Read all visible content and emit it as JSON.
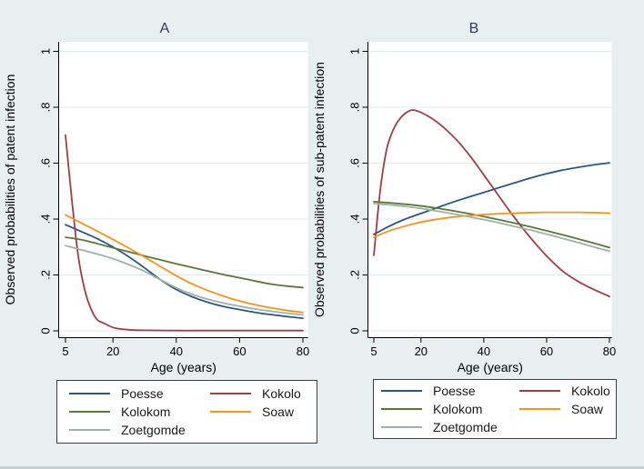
{
  "figure": {
    "background_color": "#e8eff1",
    "plot_background": "#ffffff",
    "grid_color": "#dfeaf2",
    "axis_color": "#000000",
    "title_color": "#2b3a64",
    "bottom_bar_color": "#c6d0d5"
  },
  "legend": {
    "entries": [
      {
        "id": "poesse",
        "label": "Poesse",
        "color": "#2a5784"
      },
      {
        "id": "kokolo",
        "label": "Kokolo",
        "color": "#a33d43"
      },
      {
        "id": "kolokom",
        "label": "Kolokom",
        "color": "#57793b"
      },
      {
        "id": "soaw",
        "label": "Soaw",
        "color": "#f6931d"
      },
      {
        "id": "zoetgomde",
        "label": "Zoetgomde",
        "color": "#9fb1a8"
      }
    ]
  },
  "chart_data": [
    {
      "type": "line",
      "title": "A",
      "xlabel": "Age (years)",
      "ylabel": "Observed probabilities of patent infection",
      "xlim": [
        3,
        81
      ],
      "ylim": [
        0,
        1
      ],
      "xticks": [
        5,
        20,
        40,
        60,
        80
      ],
      "xtick_labels": [
        "5",
        "20",
        "40",
        "60",
        "80"
      ],
      "yticks": [
        0,
        0.2,
        0.4,
        0.6,
        0.8,
        1
      ],
      "ytick_labels": [
        "0",
        ".2",
        ".4",
        ".6",
        ".8",
        "1"
      ],
      "grid": "horizontal",
      "legend_position": "below",
      "series": [
        {
          "name": "Poesse",
          "color": "#2a5784",
          "x": [
            5,
            10,
            15,
            20,
            25,
            30,
            35,
            40,
            45,
            50,
            55,
            60,
            65,
            70,
            75,
            80
          ],
          "y": [
            0.38,
            0.355,
            0.33,
            0.3,
            0.265,
            0.225,
            0.183,
            0.148,
            0.122,
            0.102,
            0.087,
            0.076,
            0.066,
            0.058,
            0.051,
            0.045
          ]
        },
        {
          "name": "Kokolo",
          "color": "#a33d43",
          "x": [
            5,
            7,
            9,
            11,
            13,
            15,
            17,
            20,
            23,
            26,
            30,
            40,
            50,
            60,
            70,
            80
          ],
          "y": [
            0.7,
            0.47,
            0.27,
            0.15,
            0.08,
            0.04,
            0.028,
            0.012,
            0.006,
            0.003,
            0.002,
            0.001,
            0.001,
            0.001,
            0.001,
            0.001
          ]
        },
        {
          "name": "Kolokom",
          "color": "#57793b",
          "x": [
            5,
            10,
            15,
            20,
            25,
            30,
            35,
            40,
            45,
            50,
            55,
            60,
            65,
            70,
            75,
            80
          ],
          "y": [
            0.335,
            0.326,
            0.312,
            0.297,
            0.283,
            0.268,
            0.254,
            0.24,
            0.227,
            0.214,
            0.201,
            0.19,
            0.178,
            0.167,
            0.16,
            0.155
          ]
        },
        {
          "name": "Soaw",
          "color": "#f6931d",
          "x": [
            5,
            10,
            15,
            20,
            25,
            30,
            35,
            40,
            45,
            50,
            55,
            60,
            65,
            70,
            75,
            80
          ],
          "y": [
            0.415,
            0.386,
            0.357,
            0.327,
            0.296,
            0.264,
            0.23,
            0.197,
            0.168,
            0.144,
            0.124,
            0.107,
            0.093,
            0.082,
            0.073,
            0.066
          ]
        },
        {
          "name": "Zoetgomde",
          "color": "#9fb1a8",
          "x": [
            5,
            10,
            15,
            20,
            25,
            30,
            35,
            40,
            45,
            50,
            55,
            60,
            65,
            70,
            75,
            80
          ],
          "y": [
            0.305,
            0.29,
            0.275,
            0.258,
            0.237,
            0.213,
            0.183,
            0.154,
            0.131,
            0.113,
            0.099,
            0.088,
            0.078,
            0.07,
            0.063,
            0.057
          ]
        }
      ]
    },
    {
      "type": "line",
      "title": "B",
      "xlabel": "Age (years)",
      "ylabel": "Observed probabilities of sub-patent infection",
      "xlim": [
        3,
        81
      ],
      "ylim": [
        0,
        1
      ],
      "xticks": [
        5,
        20,
        40,
        60,
        80
      ],
      "xtick_labels": [
        "5",
        "20",
        "40",
        "60",
        "80"
      ],
      "yticks": [
        0,
        0.2,
        0.4,
        0.6,
        0.8,
        1
      ],
      "ytick_labels": [
        "0",
        ".2",
        ".4",
        ".6",
        ".8",
        "1"
      ],
      "grid": "horizontal",
      "legend_position": "below",
      "series": [
        {
          "name": "Poesse",
          "color": "#2a5784",
          "x": [
            5,
            10,
            15,
            20,
            25,
            30,
            35,
            40,
            45,
            50,
            55,
            60,
            65,
            70,
            75,
            80
          ],
          "y": [
            0.345,
            0.375,
            0.4,
            0.42,
            0.44,
            0.46,
            0.478,
            0.495,
            0.513,
            0.53,
            0.547,
            0.562,
            0.575,
            0.585,
            0.594,
            0.601
          ]
        },
        {
          "name": "Kokolo",
          "color": "#a33d43",
          "x": [
            5,
            7,
            9,
            11,
            13,
            15,
            17,
            19,
            22,
            25,
            28,
            32,
            36,
            40,
            44,
            48,
            52,
            56,
            60,
            65,
            70,
            75,
            80
          ],
          "y": [
            0.27,
            0.5,
            0.645,
            0.715,
            0.755,
            0.778,
            0.79,
            0.786,
            0.77,
            0.748,
            0.72,
            0.675,
            0.62,
            0.558,
            0.495,
            0.432,
            0.373,
            0.318,
            0.268,
            0.215,
            0.177,
            0.148,
            0.123
          ]
        },
        {
          "name": "Kolokom",
          "color": "#57793b",
          "x": [
            5,
            10,
            15,
            20,
            25,
            30,
            35,
            40,
            45,
            50,
            55,
            60,
            65,
            70,
            75,
            80
          ],
          "y": [
            0.462,
            0.458,
            0.453,
            0.447,
            0.439,
            0.43,
            0.42,
            0.409,
            0.397,
            0.385,
            0.372,
            0.358,
            0.344,
            0.329,
            0.314,
            0.298
          ]
        },
        {
          "name": "Soaw",
          "color": "#f6931d",
          "x": [
            5,
            10,
            15,
            20,
            25,
            30,
            35,
            40,
            45,
            50,
            55,
            60,
            65,
            70,
            75,
            80
          ],
          "y": [
            0.335,
            0.358,
            0.375,
            0.389,
            0.399,
            0.407,
            0.412,
            0.416,
            0.419,
            0.421,
            0.423,
            0.424,
            0.424,
            0.424,
            0.423,
            0.421
          ]
        },
        {
          "name": "Zoetgomde",
          "color": "#9fb1a8",
          "x": [
            5,
            10,
            15,
            20,
            25,
            30,
            35,
            40,
            45,
            50,
            55,
            60,
            65,
            70,
            75,
            80
          ],
          "y": [
            0.455,
            0.451,
            0.445,
            0.438,
            0.429,
            0.419,
            0.409,
            0.398,
            0.386,
            0.373,
            0.36,
            0.346,
            0.331,
            0.316,
            0.3,
            0.285
          ]
        }
      ]
    }
  ]
}
